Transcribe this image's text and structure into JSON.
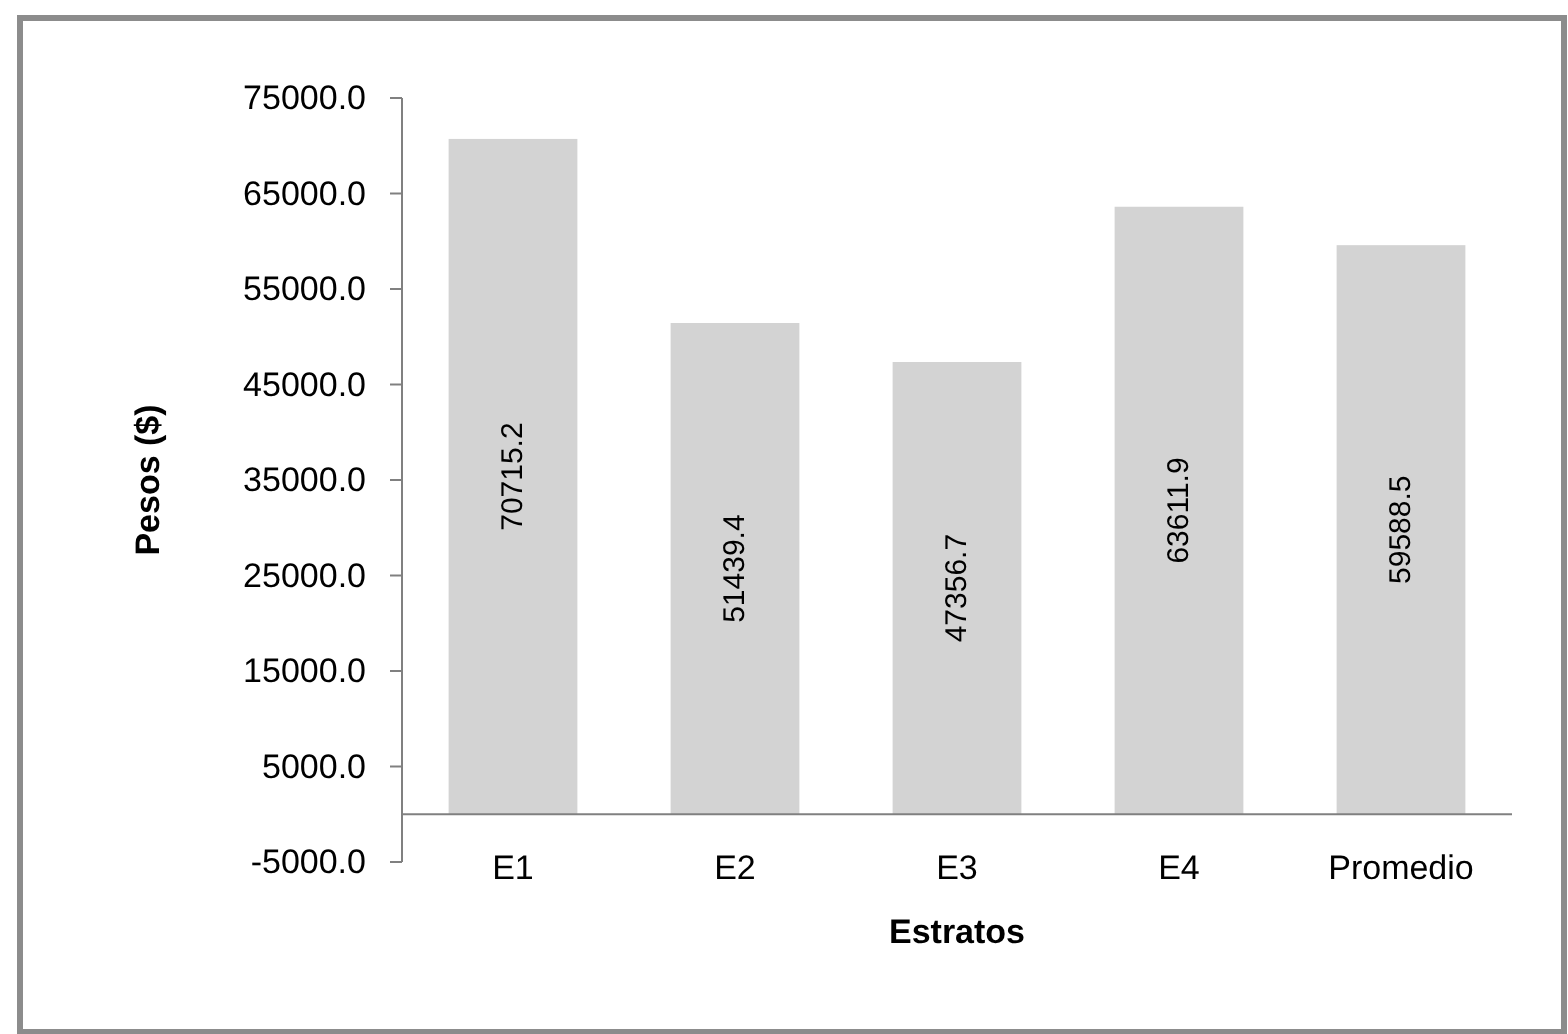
{
  "chart_data": {
    "type": "bar",
    "xlabel": "Estratos",
    "ylabel": "Pesos ($)",
    "categories": [
      "E1",
      "E2",
      "E3",
      "E4",
      "Promedio"
    ],
    "values": [
      70715.2,
      51439.4,
      47356.7,
      63611.9,
      59588.5
    ],
    "color": "#d3d3d3",
    "value_labels": [
      "70715.2",
      "51439.4",
      "47356.7",
      "63611.9",
      "59588.5"
    ],
    "ylim": [
      -5000,
      75000
    ],
    "yticks": [
      {
        "value": -5000,
        "label": "-5000.0"
      },
      {
        "value": 5000,
        "label": "5000.0"
      },
      {
        "value": 15000,
        "label": "15000.0"
      },
      {
        "value": 25000,
        "label": "25000.0"
      },
      {
        "value": 35000,
        "label": "35000.0"
      },
      {
        "value": 45000,
        "label": "45000.0"
      },
      {
        "value": 55000,
        "label": "55000.0"
      },
      {
        "value": 65000,
        "label": "65000.0"
      },
      {
        "value": 75000,
        "label": "75000.0"
      }
    ],
    "grid": false
  }
}
